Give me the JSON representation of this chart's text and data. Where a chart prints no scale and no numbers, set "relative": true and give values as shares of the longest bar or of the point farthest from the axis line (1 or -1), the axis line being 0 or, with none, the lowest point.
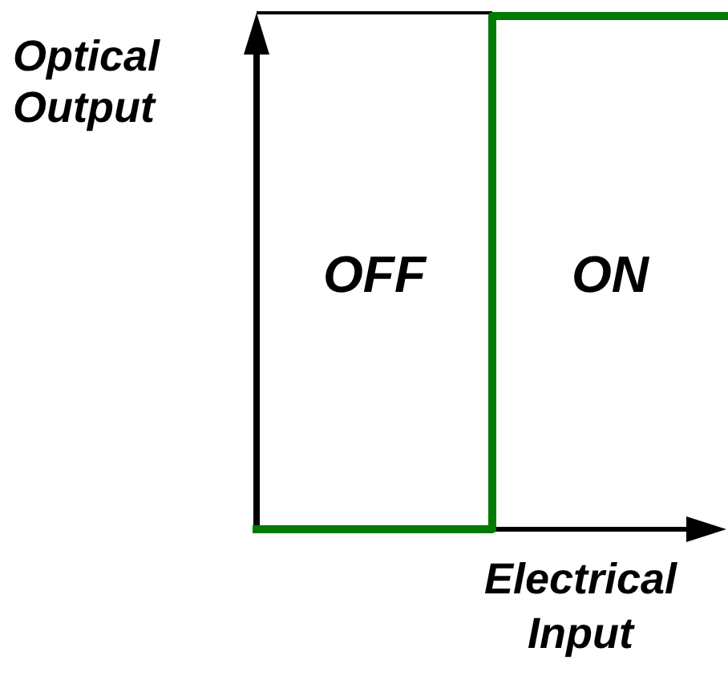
{
  "chart_data": {
    "type": "step",
    "relative": true,
    "categories": [
      null,
      null,
      null
    ],
    "series": [
      {
        "color": "#007a00",
        "values": [
          0,
          1,
          1
        ]
      }
    ],
    "xlabel": "Electrical Input",
    "ylabel": "Optical Output",
    "annotations": [
      "OFF",
      "ON"
    ],
    "grid": false
  }
}
